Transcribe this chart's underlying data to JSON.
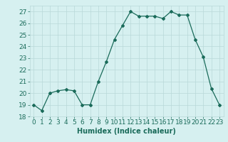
{
  "x": [
    0,
    1,
    2,
    3,
    4,
    5,
    6,
    7,
    8,
    9,
    10,
    11,
    12,
    13,
    14,
    15,
    16,
    17,
    18,
    19,
    20,
    21,
    22,
    23
  ],
  "y": [
    19,
    18.5,
    20,
    20.2,
    20.3,
    20.2,
    19,
    19,
    21,
    22.7,
    24.6,
    25.8,
    27.0,
    26.6,
    26.6,
    26.6,
    26.4,
    27.0,
    26.7,
    26.7,
    24.6,
    23.1,
    20.4,
    19
  ],
  "line_color": "#1a6b5a",
  "marker": "D",
  "markersize": 2.0,
  "linewidth": 0.9,
  "bg_color": "#d6f0f0",
  "grid_color": "#b8d8d8",
  "xlabel": "Humidex (Indice chaleur)",
  "xlabel_fontsize": 7,
  "tick_fontsize": 6.5,
  "ylim": [
    18,
    27.5
  ],
  "yticks": [
    18,
    19,
    20,
    21,
    22,
    23,
    24,
    25,
    26,
    27
  ],
  "xticks": [
    0,
    1,
    2,
    3,
    4,
    5,
    6,
    7,
    8,
    9,
    10,
    11,
    12,
    13,
    14,
    15,
    16,
    17,
    18,
    19,
    20,
    21,
    22,
    23
  ],
  "title_color": "#1a6b5a"
}
